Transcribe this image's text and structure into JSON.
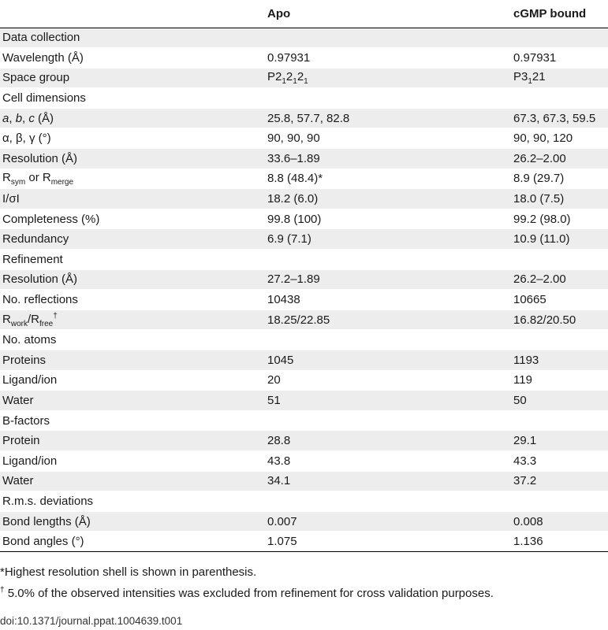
{
  "header": {
    "col0": "",
    "col1": "Apo",
    "col2": "cGMP bound"
  },
  "rows": {
    "r0": {
      "label": "Data collection",
      "apo": "",
      "cgmp": ""
    },
    "r1": {
      "label": "Wavelength (Å)",
      "apo": "0.97931",
      "cgmp": "0.97931"
    },
    "r2": {
      "label": "Space group",
      "apo": "P212121",
      "cgmp": "P3121"
    },
    "r3": {
      "label": "Cell dimensions",
      "apo": "",
      "cgmp": ""
    },
    "r4": {
      "label": "a, b, c (Å)",
      "apo": "25.8, 57.7, 82.8",
      "cgmp": "67.3, 67.3, 59.5"
    },
    "r5": {
      "label": "α, β, γ (°)",
      "apo": "90, 90, 90",
      "cgmp": "90, 90, 120"
    },
    "r6": {
      "label": "Resolution (Å)",
      "apo": "33.6–1.89",
      "cgmp": "26.2–2.00"
    },
    "r7": {
      "label": "Rsym or Rmerge",
      "apo": "8.8 (48.4)*",
      "cgmp": "8.9 (29.7)"
    },
    "r8": {
      "label": "I/σI",
      "apo": "18.2 (6.0)",
      "cgmp": "18.0 (7.5)"
    },
    "r9": {
      "label": "Completeness (%)",
      "apo": "99.8 (100)",
      "cgmp": "99.2 (98.0)"
    },
    "r10": {
      "label": "Redundancy",
      "apo": "6.9 (7.1)",
      "cgmp": "10.9 (11.0)"
    },
    "r11": {
      "label": "Refinement",
      "apo": "",
      "cgmp": ""
    },
    "r12": {
      "label": "Resolution (Å)",
      "apo": "27.2–1.89",
      "cgmp": "26.2–2.00"
    },
    "r13": {
      "label": "No. reflections",
      "apo": "10438",
      "cgmp": "10665"
    },
    "r14": {
      "label": "Rwork/Rfree†",
      "apo": "18.25/22.85",
      "cgmp": "16.82/20.50"
    },
    "r15": {
      "label": "No. atoms",
      "apo": "",
      "cgmp": ""
    },
    "r16": {
      "label": "Proteins",
      "apo": "1045",
      "cgmp": "1193"
    },
    "r17": {
      "label": "Ligand/ion",
      "apo": "20",
      "cgmp": "119"
    },
    "r18": {
      "label": "Water",
      "apo": "51",
      "cgmp": "50"
    },
    "r19": {
      "label": "B-factors",
      "apo": "",
      "cgmp": ""
    },
    "r20": {
      "label": "Protein",
      "apo": "28.8",
      "cgmp": "29.1"
    },
    "r21": {
      "label": "Ligand/ion",
      "apo": "43.8",
      "cgmp": "43.3"
    },
    "r22": {
      "label": "Water",
      "apo": "34.1",
      "cgmp": "37.2"
    },
    "r23": {
      "label": "R.m.s. deviations",
      "apo": "",
      "cgmp": ""
    },
    "r24": {
      "label": "Bond lengths (Å)",
      "apo": "0.007",
      "cgmp": "0.008"
    },
    "r25": {
      "label": "Bond angles (°)",
      "apo": "1.075",
      "cgmp": "1.136"
    }
  },
  "footnotes": {
    "f1": "*Highest resolution shell is shown in parenthesis.",
    "f2": "† 5.0% of the observed intensities was excluded from refinement for cross validation purposes."
  },
  "doi": "doi:10.1371/journal.ppat.1004639.t001"
}
